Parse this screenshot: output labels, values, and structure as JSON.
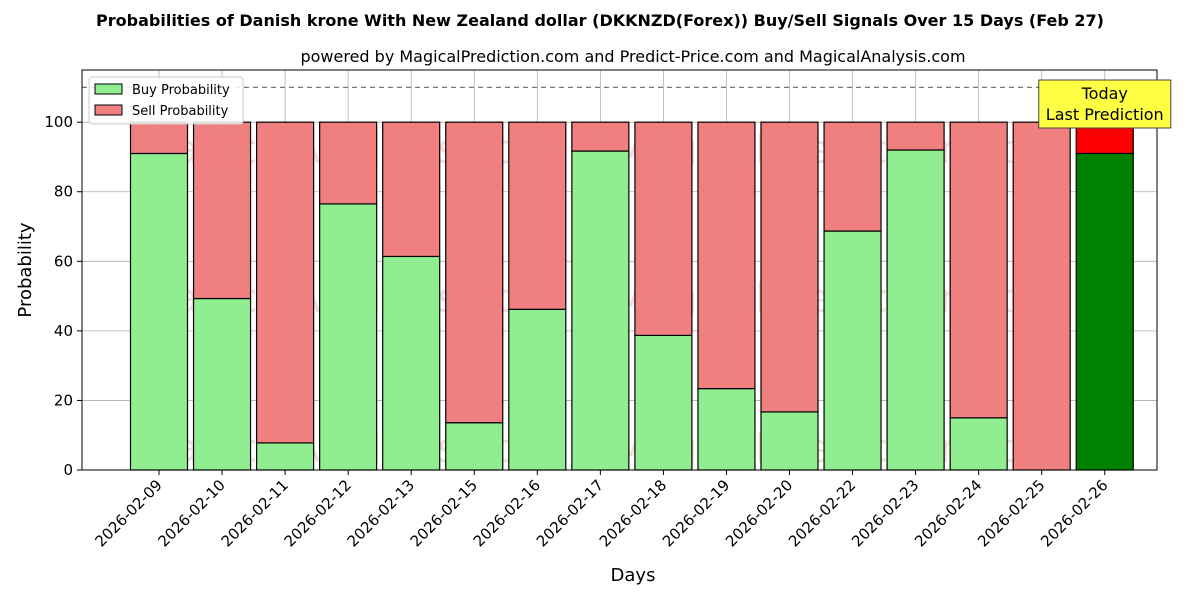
{
  "chart_data": {
    "type": "bar",
    "stacked": true,
    "title": "Probabilities of Danish krone With New Zealand dollar (DKKNZD(Forex)) Buy/Sell Signals Over 15 Days (Feb 27)",
    "subtitle": "powered by MagicalPrediction.com and Predict-Price.com and MagicalAnalysis.com",
    "xlabel": "Days",
    "ylabel": "Probability",
    "ylim": [
      0,
      115
    ],
    "yticks": [
      0,
      20,
      40,
      60,
      80,
      100
    ],
    "grid": true,
    "legend_position": "top-left",
    "reference_line": 110,
    "categories": [
      "2026-02-09",
      "2026-02-10",
      "2026-02-11",
      "2026-02-12",
      "2026-02-13",
      "2026-02-15",
      "2026-02-16",
      "2026-02-17",
      "2026-02-18",
      "2026-02-19",
      "2026-02-20",
      "2026-02-22",
      "2026-02-23",
      "2026-02-24",
      "2026-02-25",
      "2026-02-26"
    ],
    "series": [
      {
        "name": "Buy Probability",
        "color": "#90ee90",
        "values": [
          91,
          49.3,
          7.8,
          76.5,
          61.4,
          13.6,
          46.2,
          91.7,
          38.7,
          23.4,
          16.7,
          68.7,
          92,
          15,
          0,
          91
        ]
      },
      {
        "name": "Sell Probability",
        "color": "#f08080",
        "values": [
          9,
          50.7,
          92.2,
          23.5,
          38.6,
          86.4,
          53.8,
          8.3,
          61.3,
          76.6,
          83.3,
          31.3,
          8,
          85,
          100,
          9
        ]
      }
    ],
    "highlight": {
      "index": 15,
      "buy_color": "#008000",
      "sell_color": "#ff0000"
    },
    "annotation": {
      "line1": "Today",
      "line2": "Last Prediction",
      "background": "#ffff44"
    },
    "watermark": [
      "MagicalAnalysis.com",
      "MagicalPrediction.com"
    ]
  }
}
